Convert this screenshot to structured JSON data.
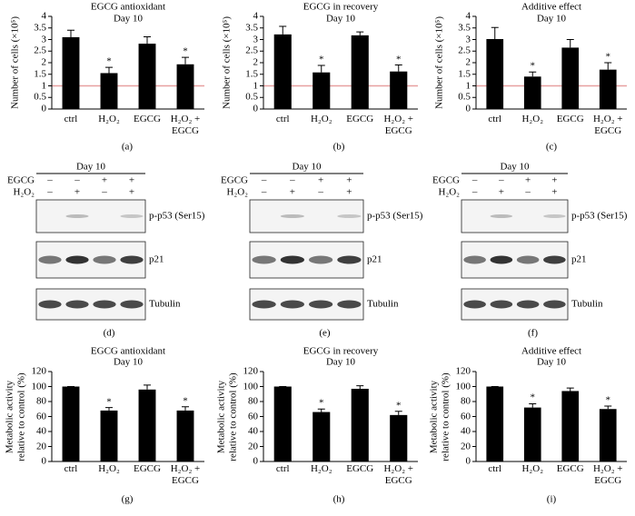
{
  "chart_data": [
    {
      "type": "bar",
      "title": "EGCG antioxidant",
      "subtitle": "Day 10",
      "y_label": "Number of cells (×10⁵)",
      "panel_label": "(a)",
      "categories": [
        "ctrl",
        "H₂O₂",
        "EGCG",
        "H₂O₂ + EGCG"
      ],
      "values": [
        3.1,
        1.55,
        2.82,
        1.93
      ],
      "errors": [
        0.3,
        0.25,
        0.3,
        0.3
      ],
      "significance": [
        null,
        "*",
        null,
        "*"
      ],
      "color": "#000000",
      "reference_line": 1,
      "reference_color": "#e8a0a0",
      "ylim": [
        0,
        4
      ],
      "yticks": [
        0,
        0.5,
        1,
        1.5,
        2,
        2.5,
        3,
        3.5,
        4
      ]
    },
    {
      "type": "bar",
      "title": "EGCG in recovery",
      "subtitle": "Day 10",
      "y_label": "Number of cells (×10⁵)",
      "panel_label": "(b)",
      "categories": [
        "ctrl",
        "H₂O₂",
        "EGCG",
        "H₂O₂ + EGCG"
      ],
      "values": [
        3.22,
        1.58,
        3.18,
        1.62
      ],
      "errors": [
        0.35,
        0.3,
        0.15,
        0.28
      ],
      "significance": [
        null,
        "*",
        null,
        "*"
      ],
      "color": "#000000",
      "reference_line": 1,
      "reference_color": "#e8a0a0",
      "ylim": [
        0,
        4
      ],
      "yticks": [
        0,
        0.5,
        1,
        1.5,
        2,
        2.5,
        3,
        3.5,
        4
      ]
    },
    {
      "type": "bar",
      "title": "Additive effect",
      "subtitle": "Day 10",
      "y_label": "Number of cells (×10⁵)",
      "panel_label": "(c)",
      "categories": [
        "ctrl",
        "H₂O₂",
        "EGCG",
        "H₂O₂ + EGCG"
      ],
      "values": [
        3.02,
        1.4,
        2.65,
        1.7
      ],
      "errors": [
        0.5,
        0.2,
        0.35,
        0.3
      ],
      "significance": [
        null,
        "*",
        null,
        "*"
      ],
      "color": "#000000",
      "reference_line": 1,
      "reference_color": "#e8a0a0",
      "ylim": [
        0,
        4
      ],
      "yticks": [
        0,
        0.5,
        1,
        1.5,
        2,
        2.5,
        3,
        3.5,
        4
      ]
    },
    {
      "type": "bar",
      "title": "EGCG antioxidant",
      "subtitle": "Day 10",
      "y_label": "Metabolic activity relative to control (%)",
      "panel_label": "(g)",
      "categories": [
        "ctrl",
        "H₂O₂",
        "EGCG",
        "H₂O₂ + EGCG"
      ],
      "values": [
        100,
        68,
        96,
        68
      ],
      "errors": [
        0,
        4,
        6,
        5
      ],
      "significance": [
        null,
        "*",
        null,
        "*"
      ],
      "color": "#000000",
      "ylim": [
        0,
        120
      ],
      "yticks": [
        0,
        20,
        40,
        60,
        80,
        100,
        120
      ]
    },
    {
      "type": "bar",
      "title": "EGCG in recovery",
      "subtitle": "Day 10",
      "y_label": "Metabolic activity relative to control (%)",
      "panel_label": "(h)",
      "categories": [
        "ctrl",
        "H₂O₂",
        "EGCG",
        "H₂O₂ + EGCG"
      ],
      "values": [
        100,
        66,
        97,
        62
      ],
      "errors": [
        0,
        4,
        4,
        5
      ],
      "significance": [
        null,
        "*",
        null,
        "*"
      ],
      "color": "#000000",
      "ylim": [
        0,
        120
      ],
      "yticks": [
        0,
        20,
        40,
        60,
        80,
        100,
        120
      ]
    },
    {
      "type": "bar",
      "title": "Additive effect",
      "subtitle": "Day 10",
      "y_label": "Metabolic activity relative to control (%)",
      "panel_label": "(i)",
      "categories": [
        "ctrl",
        "H₂O₂",
        "EGCG",
        "H₂O₂ + EGCG"
      ],
      "values": [
        100,
        72,
        94,
        70
      ],
      "errors": [
        0,
        5,
        4,
        4
      ],
      "significance": [
        null,
        "*",
        null,
        "*"
      ],
      "color": "#000000",
      "ylim": [
        0,
        120
      ],
      "yticks": [
        0,
        20,
        40,
        60,
        80,
        100,
        120
      ]
    }
  ],
  "blots": [
    {
      "title": "Day 10",
      "panel_label": "(d)",
      "treatments": [
        {
          "name": "EGCG",
          "signs": [
            "–",
            "–",
            "+",
            "+"
          ]
        },
        {
          "name": "H₂O₂",
          "signs": [
            "–",
            "+",
            "–",
            "+"
          ]
        }
      ],
      "bands": [
        "p-p53 (Ser15)",
        "p21",
        "Tubulin"
      ]
    },
    {
      "title": "Day 10",
      "panel_label": "(e)",
      "treatments": [
        {
          "name": "EGCG",
          "signs": [
            "–",
            "–",
            "+",
            "+"
          ]
        },
        {
          "name": "H₂O₂",
          "signs": [
            "–",
            "+",
            "–",
            "+"
          ]
        }
      ],
      "bands": [
        "p-p53 (Ser15)",
        "p21",
        "Tubulin"
      ]
    },
    {
      "title": "Day 10",
      "panel_label": "(f)",
      "treatments": [
        {
          "name": "EGCG",
          "signs": [
            "–",
            "–",
            "+",
            "+"
          ]
        },
        {
          "name": "H₂O₂",
          "signs": [
            "–",
            "+",
            "–",
            "+"
          ]
        }
      ],
      "bands": [
        "p-p53 (Ser15)",
        "p21",
        "Tubulin"
      ]
    }
  ]
}
